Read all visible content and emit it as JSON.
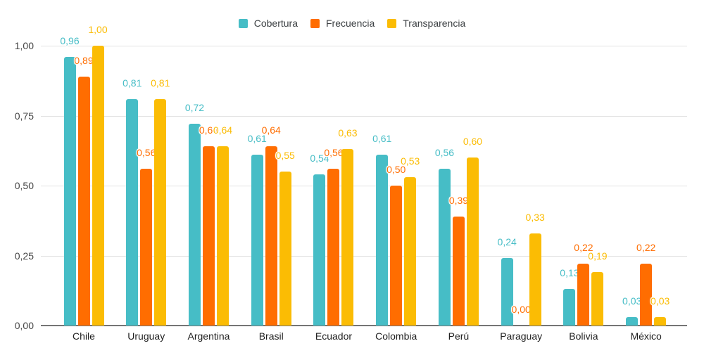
{
  "chart_data": {
    "type": "bar",
    "title": "",
    "categories": [
      "Chile",
      "Uruguay",
      "Argentina",
      "Brasil",
      "Ecuador",
      "Colombia",
      "Perú",
      "Paraguay",
      "Bolivia",
      "México"
    ],
    "series": [
      {
        "name": "Cobertura",
        "color": "#46BDC6",
        "values": [
          0.96,
          0.81,
          0.72,
          0.61,
          0.54,
          0.61,
          0.56,
          0.24,
          0.13,
          0.03
        ],
        "labels": [
          "0,96",
          "0,81",
          "0,72",
          "0,61",
          "0,54",
          "0,61",
          "0,56",
          "0,24",
          "0,13",
          "0,03"
        ]
      },
      {
        "name": "Frecuencia",
        "color": "#FF6D01",
        "values": [
          0.89,
          0.56,
          0.64,
          0.64,
          0.56,
          0.5,
          0.39,
          0.0,
          0.22,
          0.22
        ],
        "labels": [
          "0,89",
          "0,56",
          "0,64",
          "0,64",
          "0,56",
          "0,50",
          "0,39",
          "0,00",
          "0,22",
          "0,22"
        ]
      },
      {
        "name": "Transparencia",
        "color": "#FBBC04",
        "values": [
          1.0,
          0.81,
          0.64,
          0.55,
          0.63,
          0.53,
          0.6,
          0.33,
          0.19,
          0.03
        ],
        "labels": [
          "1,00",
          "0,81",
          "0,64",
          "0,55",
          "0,63",
          "0,53",
          "0,60",
          "0,33",
          "0,19",
          "0,03"
        ]
      }
    ],
    "y_axis": {
      "range": [
        0,
        1
      ],
      "grid": true,
      "ticks": [
        {
          "value": 0.0,
          "label": "0,00"
        },
        {
          "value": 0.25,
          "label": "0,25"
        },
        {
          "value": 0.5,
          "label": "0,50"
        },
        {
          "value": 0.75,
          "label": "0,75"
        },
        {
          "value": 1.0,
          "label": "1,00"
        }
      ]
    },
    "legend_position": "top",
    "decimal_separator": ",",
    "value_labels_shown": true
  }
}
